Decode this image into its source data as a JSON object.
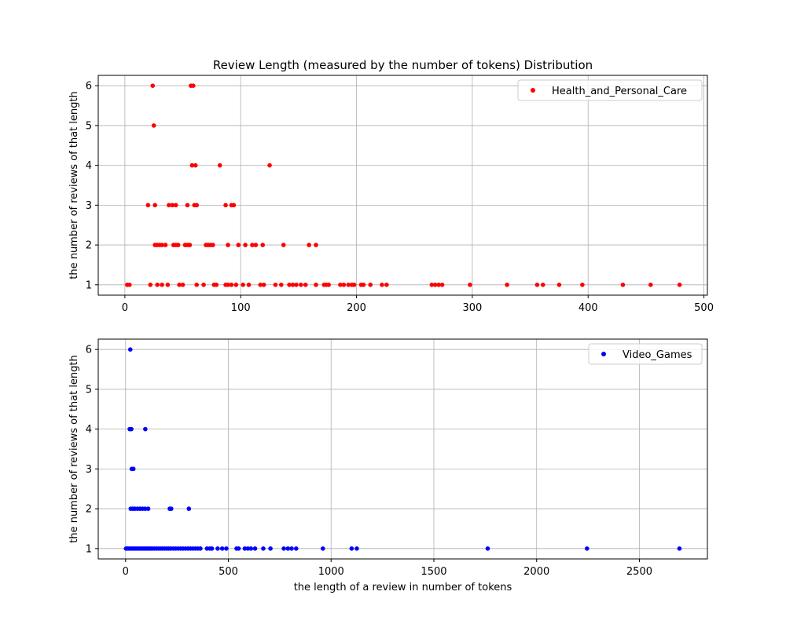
{
  "chart_data": [
    {
      "type": "scatter",
      "title": "Review Length (measured by the number of tokens) Distribution",
      "xlabel": "",
      "ylabel": "the number of reviews of that length",
      "xlim": [
        -23,
        503
      ],
      "ylim": [
        0.74,
        6.26
      ],
      "xticks": [
        0,
        100,
        200,
        300,
        400,
        500
      ],
      "yticks": [
        1,
        2,
        3,
        4,
        5,
        6
      ],
      "grid": true,
      "legend_position": "top-right",
      "series": [
        {
          "name": "Health_and_Personal_Care",
          "color": "#ff0000",
          "points": [
            [
              24,
              6
            ],
            [
              57,
              6
            ],
            [
              59,
              6
            ],
            [
              25,
              5
            ],
            [
              58,
              4
            ],
            [
              61,
              4
            ],
            [
              82,
              4
            ],
            [
              125,
              4
            ],
            [
              20,
              3
            ],
            [
              26,
              3
            ],
            [
              38,
              3
            ],
            [
              41,
              3
            ],
            [
              44,
              3
            ],
            [
              54,
              3
            ],
            [
              60,
              3
            ],
            [
              62,
              3
            ],
            [
              87,
              3
            ],
            [
              92,
              3
            ],
            [
              94,
              3
            ],
            [
              26,
              2
            ],
            [
              28,
              2
            ],
            [
              30,
              2
            ],
            [
              32,
              2
            ],
            [
              35,
              2
            ],
            [
              42,
              2
            ],
            [
              44,
              2
            ],
            [
              46,
              2
            ],
            [
              52,
              2
            ],
            [
              54,
              2
            ],
            [
              56,
              2
            ],
            [
              70,
              2
            ],
            [
              72,
              2
            ],
            [
              74,
              2
            ],
            [
              76,
              2
            ],
            [
              89,
              2
            ],
            [
              98,
              2
            ],
            [
              104,
              2
            ],
            [
              110,
              2
            ],
            [
              113,
              2
            ],
            [
              119,
              2
            ],
            [
              137,
              2
            ],
            [
              159,
              2
            ],
            [
              165,
              2
            ],
            [
              2,
              1
            ],
            [
              4,
              1
            ],
            [
              22,
              1
            ],
            [
              28,
              1
            ],
            [
              32,
              1
            ],
            [
              37,
              1
            ],
            [
              47,
              1
            ],
            [
              50,
              1
            ],
            [
              62,
              1
            ],
            [
              68,
              1
            ],
            [
              77,
              1
            ],
            [
              79,
              1
            ],
            [
              87,
              1
            ],
            [
              89,
              1
            ],
            [
              92,
              1
            ],
            [
              96,
              1
            ],
            [
              102,
              1
            ],
            [
              107,
              1
            ],
            [
              117,
              1
            ],
            [
              120,
              1
            ],
            [
              130,
              1
            ],
            [
              135,
              1
            ],
            [
              142,
              1
            ],
            [
              145,
              1
            ],
            [
              148,
              1
            ],
            [
              152,
              1
            ],
            [
              156,
              1
            ],
            [
              165,
              1
            ],
            [
              172,
              1
            ],
            [
              174,
              1
            ],
            [
              176,
              1
            ],
            [
              186,
              1
            ],
            [
              189,
              1
            ],
            [
              193,
              1
            ],
            [
              196,
              1
            ],
            [
              198,
              1
            ],
            [
              204,
              1
            ],
            [
              206,
              1
            ],
            [
              212,
              1
            ],
            [
              222,
              1
            ],
            [
              226,
              1
            ],
            [
              265,
              1
            ],
            [
              268,
              1
            ],
            [
              271,
              1
            ],
            [
              274,
              1
            ],
            [
              298,
              1
            ],
            [
              330,
              1
            ],
            [
              356,
              1
            ],
            [
              361,
              1
            ],
            [
              375,
              1
            ],
            [
              395,
              1
            ],
            [
              430,
              1
            ],
            [
              454,
              1
            ],
            [
              479,
              1
            ]
          ]
        }
      ]
    },
    {
      "type": "scatter",
      "title": "",
      "xlabel": "the length of a review in number of tokens",
      "ylabel": "the number of reviews of that length",
      "xlim": [
        -133,
        2831
      ],
      "ylim": [
        0.74,
        6.26
      ],
      "xticks": [
        0,
        500,
        1000,
        1500,
        2000,
        2500
      ],
      "yticks": [
        1,
        2,
        3,
        4,
        5,
        6
      ],
      "grid": true,
      "legend_position": "top-right",
      "series": [
        {
          "name": "Video_Games",
          "color": "#0000ff",
          "points": [
            [
              23,
              6
            ],
            [
              20,
              4
            ],
            [
              28,
              4
            ],
            [
              96,
              4
            ],
            [
              30,
              3
            ],
            [
              38,
              3
            ],
            [
              25,
              2
            ],
            [
              35,
              2
            ],
            [
              45,
              2
            ],
            [
              58,
              2
            ],
            [
              70,
              2
            ],
            [
              82,
              2
            ],
            [
              95,
              2
            ],
            [
              110,
              2
            ],
            [
              215,
              2
            ],
            [
              222,
              2
            ],
            [
              308,
              2
            ],
            [
              2,
              1
            ],
            [
              10,
              1
            ],
            [
              18,
              1
            ],
            [
              26,
              1
            ],
            [
              34,
              1
            ],
            [
              42,
              1
            ],
            [
              50,
              1
            ],
            [
              58,
              1
            ],
            [
              66,
              1
            ],
            [
              74,
              1
            ],
            [
              82,
              1
            ],
            [
              90,
              1
            ],
            [
              98,
              1
            ],
            [
              106,
              1
            ],
            [
              114,
              1
            ],
            [
              122,
              1
            ],
            [
              130,
              1
            ],
            [
              140,
              1
            ],
            [
              150,
              1
            ],
            [
              160,
              1
            ],
            [
              170,
              1
            ],
            [
              180,
              1
            ],
            [
              190,
              1
            ],
            [
              200,
              1
            ],
            [
              210,
              1
            ],
            [
              220,
              1
            ],
            [
              232,
              1
            ],
            [
              244,
              1
            ],
            [
              256,
              1
            ],
            [
              268,
              1
            ],
            [
              280,
              1
            ],
            [
              292,
              1
            ],
            [
              304,
              1
            ],
            [
              316,
              1
            ],
            [
              328,
              1
            ],
            [
              340,
              1
            ],
            [
              352,
              1
            ],
            [
              364,
              1
            ],
            [
              396,
              1
            ],
            [
              410,
              1
            ],
            [
              420,
              1
            ],
            [
              448,
              1
            ],
            [
              470,
              1
            ],
            [
              490,
              1
            ],
            [
              540,
              1
            ],
            [
              550,
              1
            ],
            [
              580,
              1
            ],
            [
              595,
              1
            ],
            [
              610,
              1
            ],
            [
              630,
              1
            ],
            [
              670,
              1
            ],
            [
              705,
              1
            ],
            [
              770,
              1
            ],
            [
              790,
              1
            ],
            [
              808,
              1
            ],
            [
              830,
              1
            ],
            [
              960,
              1
            ],
            [
              1100,
              1
            ],
            [
              1125,
              1
            ],
            [
              1762,
              1
            ],
            [
              2245,
              1
            ],
            [
              2695,
              1
            ]
          ]
        }
      ]
    }
  ]
}
